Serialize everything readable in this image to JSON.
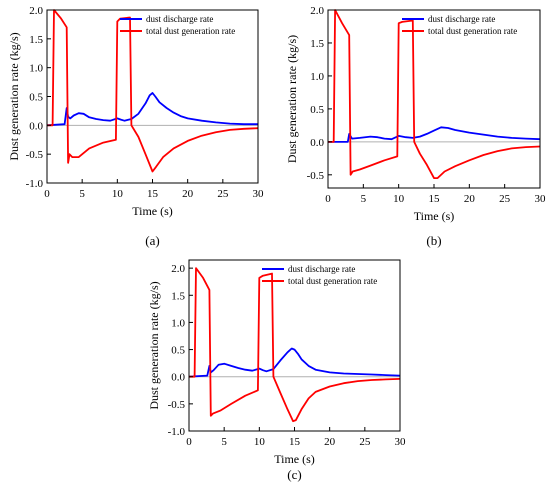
{
  "figure": {
    "x_axis_title": "Time (s)",
    "y_axis_title": "Dust generation rate (kg/s)"
  },
  "chart_data": [
    {
      "type": "line",
      "panel_label": "(a)",
      "xlabel": "Time (s)",
      "ylabel": "Dust generation rate (kg/s)",
      "xlim": [
        0,
        30
      ],
      "ylim": [
        -1.0,
        2.0
      ],
      "xticks": [
        0,
        5,
        10,
        15,
        20,
        25,
        30
      ],
      "yticks": [
        -1.0,
        -0.5,
        0.0,
        0.5,
        1.0,
        1.5,
        2.0
      ],
      "ytick_labels": [
        "-1.0",
        "-0.5",
        "0.0",
        "0.5",
        "1.0",
        "1.5",
        "2.0"
      ],
      "zero_line": true,
      "legend_position": "top-right",
      "series": [
        {
          "name": "dust discharge rate",
          "color": "#0000ff",
          "x": [
            0,
            2.5,
            2.8,
            3.0,
            3.3,
            3.8,
            4.5,
            5.2,
            6.0,
            7.0,
            8.0,
            9.0,
            10.0,
            10.5,
            11.0,
            12.0,
            13.0,
            14.0,
            14.6,
            15.0,
            15.4,
            16.0,
            17.0,
            18.0,
            19.0,
            20.0,
            22.0,
            24.0,
            26.0,
            28.0,
            30.0
          ],
          "y": [
            0,
            0.02,
            0.3,
            0.15,
            0.12,
            0.17,
            0.21,
            0.2,
            0.14,
            0.11,
            0.09,
            0.08,
            0.12,
            0.1,
            0.08,
            0.11,
            0.2,
            0.38,
            0.52,
            0.56,
            0.5,
            0.4,
            0.3,
            0.22,
            0.16,
            0.12,
            0.08,
            0.05,
            0.03,
            0.02,
            0.02
          ]
        },
        {
          "name": "total dust generation rate",
          "color": "#ff0000",
          "x": [
            0,
            0.8,
            1.0,
            2.0,
            2.8,
            3.0,
            3.2,
            3.6,
            4.5,
            6.0,
            8.0,
            9.8,
            10.0,
            10.4,
            11.8,
            12.0,
            13.0,
            14.0,
            15.0,
            15.5,
            16.5,
            18.0,
            20.0,
            22.0,
            24.0,
            26.0,
            28.0,
            30.0
          ],
          "y": [
            0,
            0,
            2.0,
            1.85,
            1.7,
            -0.65,
            -0.5,
            -0.55,
            -0.55,
            -0.4,
            -0.3,
            -0.25,
            1.8,
            1.85,
            1.87,
            0.0,
            -0.2,
            -0.5,
            -0.8,
            -0.72,
            -0.55,
            -0.4,
            -0.27,
            -0.18,
            -0.12,
            -0.08,
            -0.06,
            -0.05
          ]
        }
      ]
    },
    {
      "type": "line",
      "panel_label": "(b)",
      "xlabel": "Time (s)",
      "ylabel": "Dust generation rate (kg/s)",
      "xlim": [
        0,
        30
      ],
      "ylim": [
        -0.7,
        2.0
      ],
      "xticks": [
        0,
        5,
        10,
        15,
        20,
        25,
        30
      ],
      "yticks": [
        -0.5,
        0.0,
        0.5,
        1.0,
        1.5,
        2.0
      ],
      "ytick_labels": [
        "-0.5",
        "0.0",
        "0.5",
        "1.0",
        "1.5",
        "2.0"
      ],
      "zero_line": true,
      "legend_position": "top-right",
      "series": [
        {
          "name": "dust discharge rate",
          "color": "#0000ff",
          "x": [
            0,
            2.8,
            3.0,
            3.4,
            4.5,
            6.0,
            7.0,
            8.0,
            9.0,
            10.0,
            11.0,
            12.0,
            13.0,
            14.0,
            15.0,
            16.0,
            17.0,
            18.0,
            20.0,
            22.0,
            24.0,
            26.0,
            28.0,
            30.0
          ],
          "y": [
            0,
            0.0,
            0.12,
            0.05,
            0.06,
            0.08,
            0.07,
            0.05,
            0.04,
            0.09,
            0.07,
            0.06,
            0.08,
            0.12,
            0.17,
            0.22,
            0.21,
            0.18,
            0.14,
            0.11,
            0.08,
            0.06,
            0.05,
            0.04
          ]
        },
        {
          "name": "total dust generation rate",
          "color": "#ff0000",
          "x": [
            0,
            0.8,
            1.0,
            2.0,
            3.0,
            3.2,
            3.5,
            4.5,
            6.0,
            8.0,
            9.8,
            10.0,
            10.5,
            12.0,
            12.2,
            13.0,
            14.0,
            15.0,
            15.5,
            16.5,
            18.0,
            20.0,
            22.0,
            24.0,
            26.0,
            28.0,
            30.0
          ],
          "y": [
            0,
            0,
            2.0,
            1.8,
            1.62,
            -0.5,
            -0.45,
            -0.42,
            -0.36,
            -0.28,
            -0.22,
            1.8,
            1.82,
            1.84,
            0.0,
            -0.18,
            -0.35,
            -0.55,
            -0.55,
            -0.45,
            -0.37,
            -0.28,
            -0.2,
            -0.14,
            -0.1,
            -0.08,
            -0.07
          ]
        }
      ]
    },
    {
      "type": "line",
      "panel_label": "(c)",
      "xlabel": "Time (s)",
      "ylabel": "Dust generation rate (kg/s)",
      "xlim": [
        0,
        30
      ],
      "ylim": [
        -1.0,
        2.15
      ],
      "xticks": [
        0,
        5,
        10,
        15,
        20,
        25,
        30
      ],
      "yticks": [
        -1.0,
        -0.5,
        0.0,
        0.5,
        1.0,
        1.5,
        2.0
      ],
      "ytick_labels": [
        "-1.0",
        "-0.5",
        "0.0",
        "0.5",
        "1.0",
        "1.5",
        "2.0"
      ],
      "zero_line": true,
      "legend_position": "top-right",
      "series": [
        {
          "name": "dust discharge rate",
          "color": "#0000ff",
          "x": [
            0,
            2.6,
            2.9,
            3.1,
            3.5,
            4.2,
            5.0,
            6.0,
            7.0,
            8.0,
            9.0,
            10.0,
            10.5,
            11.0,
            12.0,
            13.0,
            14.0,
            14.6,
            15.0,
            15.5,
            16.0,
            17.0,
            18.0,
            20.0,
            22.0,
            24.0,
            26.0,
            28.0,
            30.0
          ],
          "y": [
            0,
            0.02,
            0.2,
            0.08,
            0.12,
            0.22,
            0.24,
            0.2,
            0.16,
            0.13,
            0.11,
            0.15,
            0.12,
            0.1,
            0.14,
            0.3,
            0.45,
            0.52,
            0.5,
            0.42,
            0.32,
            0.2,
            0.13,
            0.08,
            0.06,
            0.05,
            0.04,
            0.03,
            0.02
          ]
        },
        {
          "name": "total dust generation rate",
          "color": "#ff0000",
          "x": [
            0,
            0.8,
            1.0,
            2.0,
            2.9,
            3.1,
            3.4,
            4.5,
            6.0,
            8.0,
            9.8,
            10.0,
            10.5,
            11.8,
            12.0,
            13.0,
            14.0,
            14.8,
            15.2,
            16.0,
            17.0,
            18.0,
            20.0,
            22.0,
            24.0,
            26.0,
            28.0,
            30.0
          ],
          "y": [
            0,
            0,
            2.0,
            1.82,
            1.6,
            -0.72,
            -0.68,
            -0.62,
            -0.5,
            -0.35,
            -0.25,
            1.82,
            1.86,
            1.9,
            0.0,
            -0.3,
            -0.6,
            -0.82,
            -0.8,
            -0.6,
            -0.4,
            -0.28,
            -0.18,
            -0.12,
            -0.08,
            -0.06,
            -0.05,
            -0.04
          ]
        }
      ]
    }
  ]
}
